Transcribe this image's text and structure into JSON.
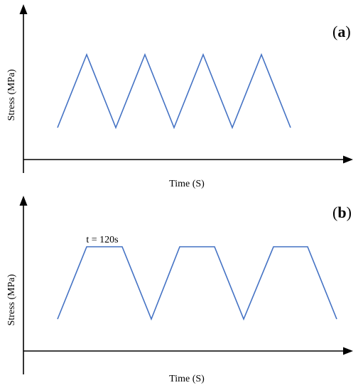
{
  "colors": {
    "curve": "#4472C4",
    "axis": "#000000"
  },
  "panel_a": {
    "label_open": "(",
    "label_letter": "a",
    "label_close": ")",
    "xlabel": "Time (S)",
    "ylabel": "Stress (MPa)",
    "waveform": "triangular",
    "cycles": 4,
    "dwell": false
  },
  "panel_b": {
    "label_open": "(",
    "label_letter": "b",
    "label_close": ")",
    "xlabel": "Time (S)",
    "ylabel": "Stress (MPa)",
    "annotation": "t = 120s",
    "waveform": "trapezoidal",
    "cycles": 3,
    "dwell": true
  }
}
